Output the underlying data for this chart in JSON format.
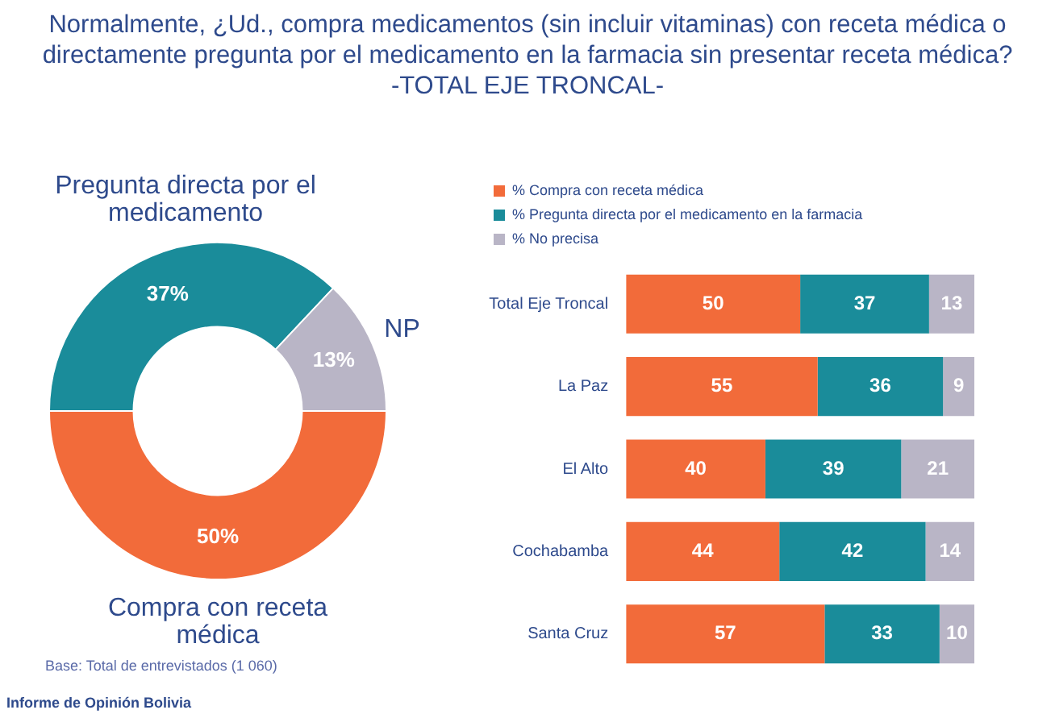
{
  "chart_data": [
    {
      "type": "donut",
      "title": "Normalmente, ¿Ud., compra medicamentos (sin incluir vitaminas) con receta médica o directamente pregunta por el medicamento en la farmacia sin presentar receta médica?",
      "subtitle": "-TOTAL EJE TRONCAL-",
      "categories": [
        "Compra con receta médica",
        "Pregunta directa por el medicamento",
        "NP"
      ],
      "values": [
        50,
        37,
        13
      ],
      "colors": [
        "#f26b3a",
        "#1a8c9a",
        "#b9b5c6"
      ],
      "value_labels": [
        "50%",
        "37%",
        "13%"
      ],
      "annotations": [
        "Base: Total de entrevistados (1 060)",
        "Informe de Opinión Bolivia"
      ]
    },
    {
      "type": "bar",
      "orientation": "horizontal",
      "stacked": true,
      "data_labels": true,
      "legend": "top",
      "tick_labels": "y",
      "categories": [
        "Total Eje Troncal",
        "La Paz",
        "El Alto",
        "Cochabamba",
        "Santa Cruz"
      ],
      "series": [
        {
          "name": "% Compra con receta médica",
          "color": "#f26b3a",
          "values": [
            50,
            55,
            40,
            44,
            57
          ]
        },
        {
          "name": "% Pregunta directa por el medicamento en la farmacia",
          "color": "#1a8c9a",
          "values": [
            37,
            36,
            39,
            42,
            33
          ]
        },
        {
          "name": "% No precisa",
          "color": "#b9b5c6",
          "values": [
            13,
            9,
            21,
            14,
            10
          ]
        }
      ]
    }
  ]
}
